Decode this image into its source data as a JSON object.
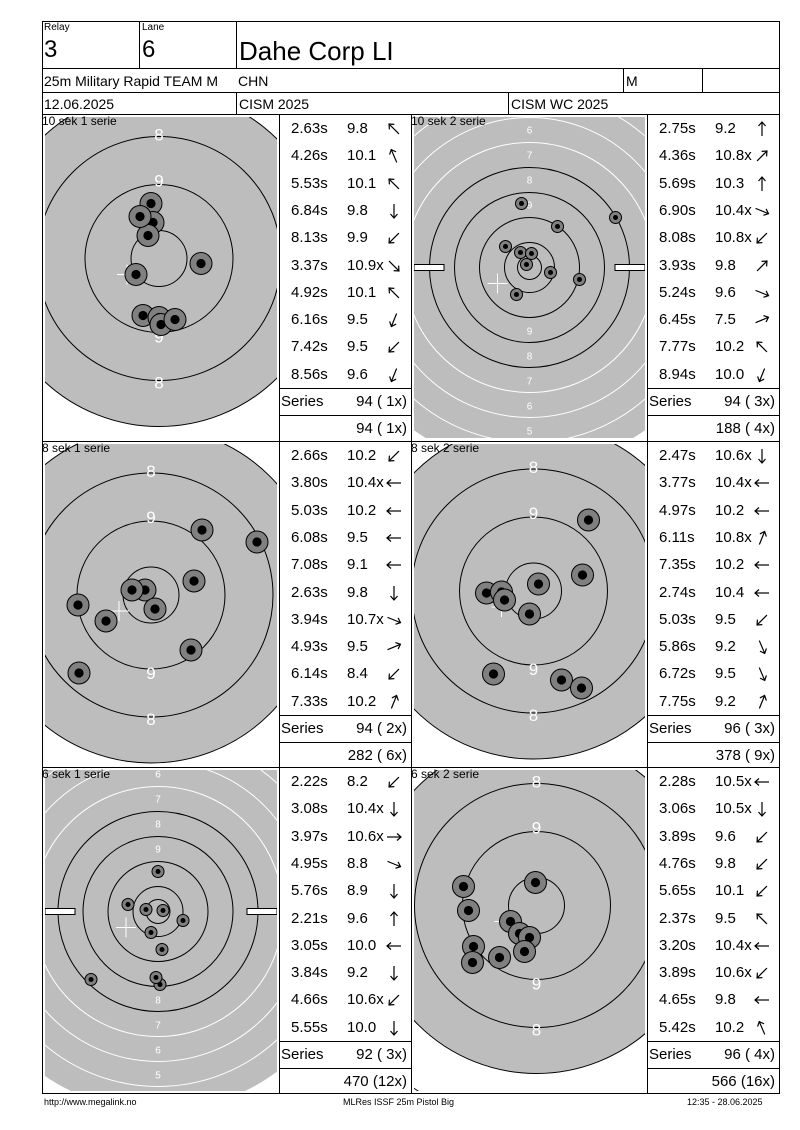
{
  "header": {
    "relay_label": "Relay",
    "relay": "3",
    "lane_label": "Lane",
    "lane": "6",
    "name": "Dahe Corp LI",
    "event": "25m Military Rapid TEAM M",
    "nation": "CHN",
    "gender": "M",
    "date": "12.06.2025",
    "competition": "CISM 2025",
    "championship": "CISM WC 2025"
  },
  "panels": [
    {
      "title": "10 sek 1 serie",
      "target": "precision",
      "shots": [
        {
          "time": "2.63s",
          "score": "9.8",
          "dir": "nw"
        },
        {
          "time": "4.26s",
          "score": "10.1",
          "dir": "nnw"
        },
        {
          "time": "5.53s",
          "score": "10.1",
          "dir": "nw"
        },
        {
          "time": "6.84s",
          "score": "9.8",
          "dir": "s"
        },
        {
          "time": "8.13s",
          "score": "9.9",
          "dir": "sw"
        },
        {
          "time": "3.37s",
          "score": "10.9x",
          "dir": "se"
        },
        {
          "time": "4.92s",
          "score": "10.1",
          "dir": "nw"
        },
        {
          "time": "6.16s",
          "score": "9.5",
          "dir": "ssw"
        },
        {
          "time": "7.42s",
          "score": "9.5",
          "dir": "sw"
        },
        {
          "time": "8.56s",
          "score": "9.6",
          "dir": "ssw"
        }
      ],
      "series_label": "Series",
      "series": "94 ( 1x)",
      "total": "94 ( 1x)"
    },
    {
      "title": "10 sek 2 serie",
      "target": "rapid",
      "shots": [
        {
          "time": "2.75s",
          "score": "9.2",
          "dir": "n"
        },
        {
          "time": "4.36s",
          "score": "10.8x",
          "dir": "ne"
        },
        {
          "time": "5.69s",
          "score": "10.3",
          "dir": "n"
        },
        {
          "time": "6.90s",
          "score": "10.4x",
          "dir": "ese"
        },
        {
          "time": "8.08s",
          "score": "10.8x",
          "dir": "sw"
        },
        {
          "time": "3.93s",
          "score": "9.8",
          "dir": "ne"
        },
        {
          "time": "5.24s",
          "score": "9.6",
          "dir": "ese"
        },
        {
          "time": "6.45s",
          "score": "7.5",
          "dir": "ene"
        },
        {
          "time": "7.77s",
          "score": "10.2",
          "dir": "nw"
        },
        {
          "time": "8.94s",
          "score": "10.0",
          "dir": "ssw"
        }
      ],
      "series_label": "Series",
      "series": "94 ( 3x)",
      "total": "188 ( 4x)"
    },
    {
      "title": "8 sek 1 serie",
      "target": "precision",
      "shots": [
        {
          "time": "2.66s",
          "score": "10.2",
          "dir": "sw"
        },
        {
          "time": "3.80s",
          "score": "10.4x",
          "dir": "w"
        },
        {
          "time": "5.03s",
          "score": "10.2",
          "dir": "w"
        },
        {
          "time": "6.08s",
          "score": "9.5",
          "dir": "w"
        },
        {
          "time": "7.08s",
          "score": "9.1",
          "dir": "w"
        },
        {
          "time": "2.63s",
          "score": "9.8",
          "dir": "s"
        },
        {
          "time": "3.94s",
          "score": "10.7x",
          "dir": "ese"
        },
        {
          "time": "4.93s",
          "score": "9.5",
          "dir": "ene"
        },
        {
          "time": "6.14s",
          "score": "8.4",
          "dir": "sw"
        },
        {
          "time": "7.33s",
          "score": "10.2",
          "dir": "nne"
        }
      ],
      "series_label": "Series",
      "series": "94 ( 2x)",
      "total": "282 ( 6x)"
    },
    {
      "title": "8 sek 2 serie",
      "target": "precision",
      "shots": [
        {
          "time": "2.47s",
          "score": "10.6x",
          "dir": "s"
        },
        {
          "time": "3.77s",
          "score": "10.4x",
          "dir": "w"
        },
        {
          "time": "4.97s",
          "score": "10.2",
          "dir": "w"
        },
        {
          "time": "6.11s",
          "score": "10.8x",
          "dir": "nne"
        },
        {
          "time": "7.35s",
          "score": "10.2",
          "dir": "w"
        },
        {
          "time": "2.74s",
          "score": "10.4",
          "dir": "w"
        },
        {
          "time": "5.03s",
          "score": "9.5",
          "dir": "sw"
        },
        {
          "time": "5.86s",
          "score": "9.2",
          "dir": "sse"
        },
        {
          "time": "6.72s",
          "score": "9.5",
          "dir": "sse"
        },
        {
          "time": "7.75s",
          "score": "9.2",
          "dir": "nne"
        }
      ],
      "series_label": "Series",
      "series": "96 ( 3x)",
      "total": "378 ( 9x)"
    },
    {
      "title": "6 sek 1 serie",
      "target": "rapid",
      "shots": [
        {
          "time": "2.22s",
          "score": "8.2",
          "dir": "sw"
        },
        {
          "time": "3.08s",
          "score": "10.4x",
          "dir": "s"
        },
        {
          "time": "3.97s",
          "score": "10.6x",
          "dir": "e"
        },
        {
          "time": "4.95s",
          "score": "8.8",
          "dir": "ese"
        },
        {
          "time": "5.76s",
          "score": "8.9",
          "dir": "s"
        },
        {
          "time": "2.21s",
          "score": "9.6",
          "dir": "n"
        },
        {
          "time": "3.05s",
          "score": "10.0",
          "dir": "w"
        },
        {
          "time": "3.84s",
          "score": "9.2",
          "dir": "s"
        },
        {
          "time": "4.66s",
          "score": "10.6x",
          "dir": "sw"
        },
        {
          "time": "5.55s",
          "score": "10.0",
          "dir": "s"
        }
      ],
      "series_label": "Series",
      "series": "92 ( 3x)",
      "total": "470 (12x)"
    },
    {
      "title": "6 sek 2 serie",
      "target": "precision",
      "shots": [
        {
          "time": "2.28s",
          "score": "10.5x",
          "dir": "w"
        },
        {
          "time": "3.06s",
          "score": "10.5x",
          "dir": "s"
        },
        {
          "time": "3.89s",
          "score": "9.6",
          "dir": "sw"
        },
        {
          "time": "4.76s",
          "score": "9.8",
          "dir": "sw"
        },
        {
          "time": "5.65s",
          "score": "10.1",
          "dir": "sw"
        },
        {
          "time": "2.37s",
          "score": "9.5",
          "dir": "nw"
        },
        {
          "time": "3.20s",
          "score": "10.4x",
          "dir": "w"
        },
        {
          "time": "3.89s",
          "score": "10.6x",
          "dir": "sw"
        },
        {
          "time": "4.65s",
          "score": "9.8",
          "dir": "w"
        },
        {
          "time": "5.42s",
          "score": "10.2",
          "dir": "nnw"
        }
      ],
      "series_label": "Series",
      "series": "96 ( 4x)",
      "total": "566 (16x)"
    }
  ],
  "footer": {
    "left": "http://www.megalink.no",
    "center": "MLRes ISSF 25m Pistol Big",
    "right": "12:35 - 28.06.2025"
  }
}
